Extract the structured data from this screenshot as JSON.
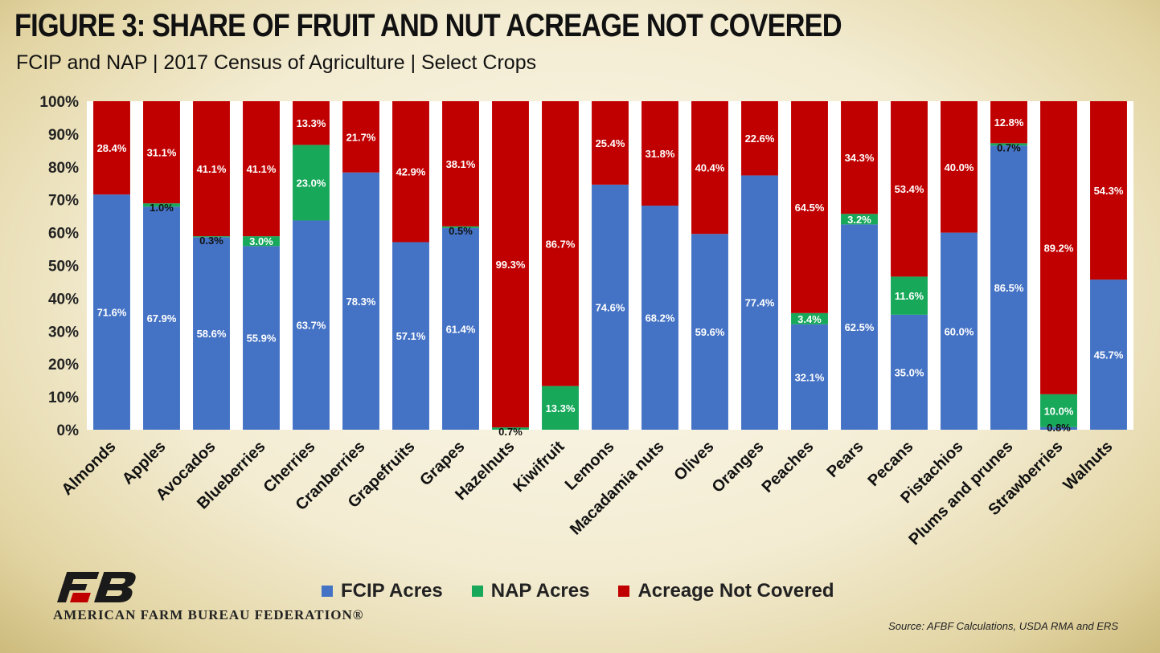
{
  "header": {
    "title": "FIGURE 3: SHARE OF FRUIT AND NUT ACREAGE NOT COVERED",
    "subtitle": "FCIP and NAP | 2017 Census of Agriculture | Select Crops"
  },
  "footer": {
    "org_name": "AMERICAN FARM BUREAU FEDERATION®",
    "source": "Source: AFBF Calculations, USDA RMA and ERS"
  },
  "colors": {
    "fcip": "#4472c4",
    "nap": "#17a85a",
    "not_covered": "#c00000",
    "plot_bg": "#ffffff"
  },
  "legend_labels": [
    "FCIP Acres",
    "NAP Acres",
    "Acreage Not Covered"
  ],
  "chart_data": {
    "type": "bar",
    "stacked": true,
    "title": "FIGURE 3: SHARE OF FRUIT AND NUT ACREAGE NOT COVERED",
    "subtitle": "FCIP and NAP | 2017 Census of Agriculture | Select Crops",
    "xlabel": "",
    "ylabel": "",
    "ylim": [
      0,
      100
    ],
    "yticks": [
      "0%",
      "10%",
      "20%",
      "30%",
      "40%",
      "50%",
      "60%",
      "70%",
      "80%",
      "90%",
      "100%"
    ],
    "legend_position": "bottom",
    "categories": [
      "Almonds",
      "Apples",
      "Avocados",
      "Blueberries",
      "Cherries",
      "Cranberries",
      "Grapefruits",
      "Grapes",
      "Hazelnuts",
      "Kiwifruit",
      "Lemons",
      "Macadamia nuts",
      "Olives",
      "Oranges",
      "Peaches",
      "Pears",
      "Pecans",
      "Pistachios",
      "Plums and  prunes",
      "Strawberries",
      "Walnuts"
    ],
    "series": [
      {
        "name": "FCIP Acres",
        "values": [
          71.6,
          67.9,
          58.6,
          55.9,
          63.7,
          78.3,
          57.1,
          61.4,
          0,
          0,
          74.6,
          68.2,
          59.6,
          77.4,
          32.1,
          62.5,
          35.0,
          60.0,
          86.5,
          0.8,
          45.7
        ],
        "labels": [
          "71.6%",
          "67.9%",
          "58.6%",
          "55.9%",
          "63.7%",
          "78.3%",
          "57.1%",
          "61.4%",
          "",
          "",
          "74.6%",
          "68.2%",
          "59.6%",
          "77.4%",
          "32.1%",
          "62.5%",
          "35.0%",
          "60.0%",
          "86.5%",
          "0.8%",
          "45.7%"
        ]
      },
      {
        "name": "NAP Acres",
        "values": [
          0,
          1.0,
          0.3,
          3.0,
          23.0,
          0,
          0,
          0.5,
          0.7,
          13.3,
          0,
          0,
          0,
          0,
          3.4,
          3.2,
          11.6,
          0,
          0.7,
          10.0,
          0
        ],
        "labels": [
          "",
          "1.0%",
          "0.3%",
          "3.0%",
          "23.0%",
          "",
          "",
          "0.5%",
          "0.7%",
          "13.3%",
          "",
          "",
          "",
          "",
          "3.4%",
          "3.2%",
          "11.6%",
          "",
          "0.7%",
          "10.0%",
          ""
        ]
      },
      {
        "name": "Acreage Not Covered",
        "values": [
          28.4,
          31.1,
          41.1,
          41.1,
          13.3,
          21.7,
          42.9,
          38.1,
          99.3,
          86.7,
          25.4,
          31.8,
          40.4,
          22.6,
          64.5,
          34.3,
          53.4,
          40.0,
          12.8,
          89.2,
          54.3
        ],
        "labels": [
          "28.4%",
          "31.1%",
          "41.1%",
          "41.1%",
          "13.3%",
          "21.7%",
          "42.9%",
          "38.1%",
          "99.3%",
          "86.7%",
          "25.4%",
          "31.8%",
          "40.4%",
          "22.6%",
          "64.5%",
          "34.3%",
          "53.4%",
          "40.0%",
          "12.8%",
          "89.2%",
          "54.3%"
        ]
      }
    ]
  }
}
